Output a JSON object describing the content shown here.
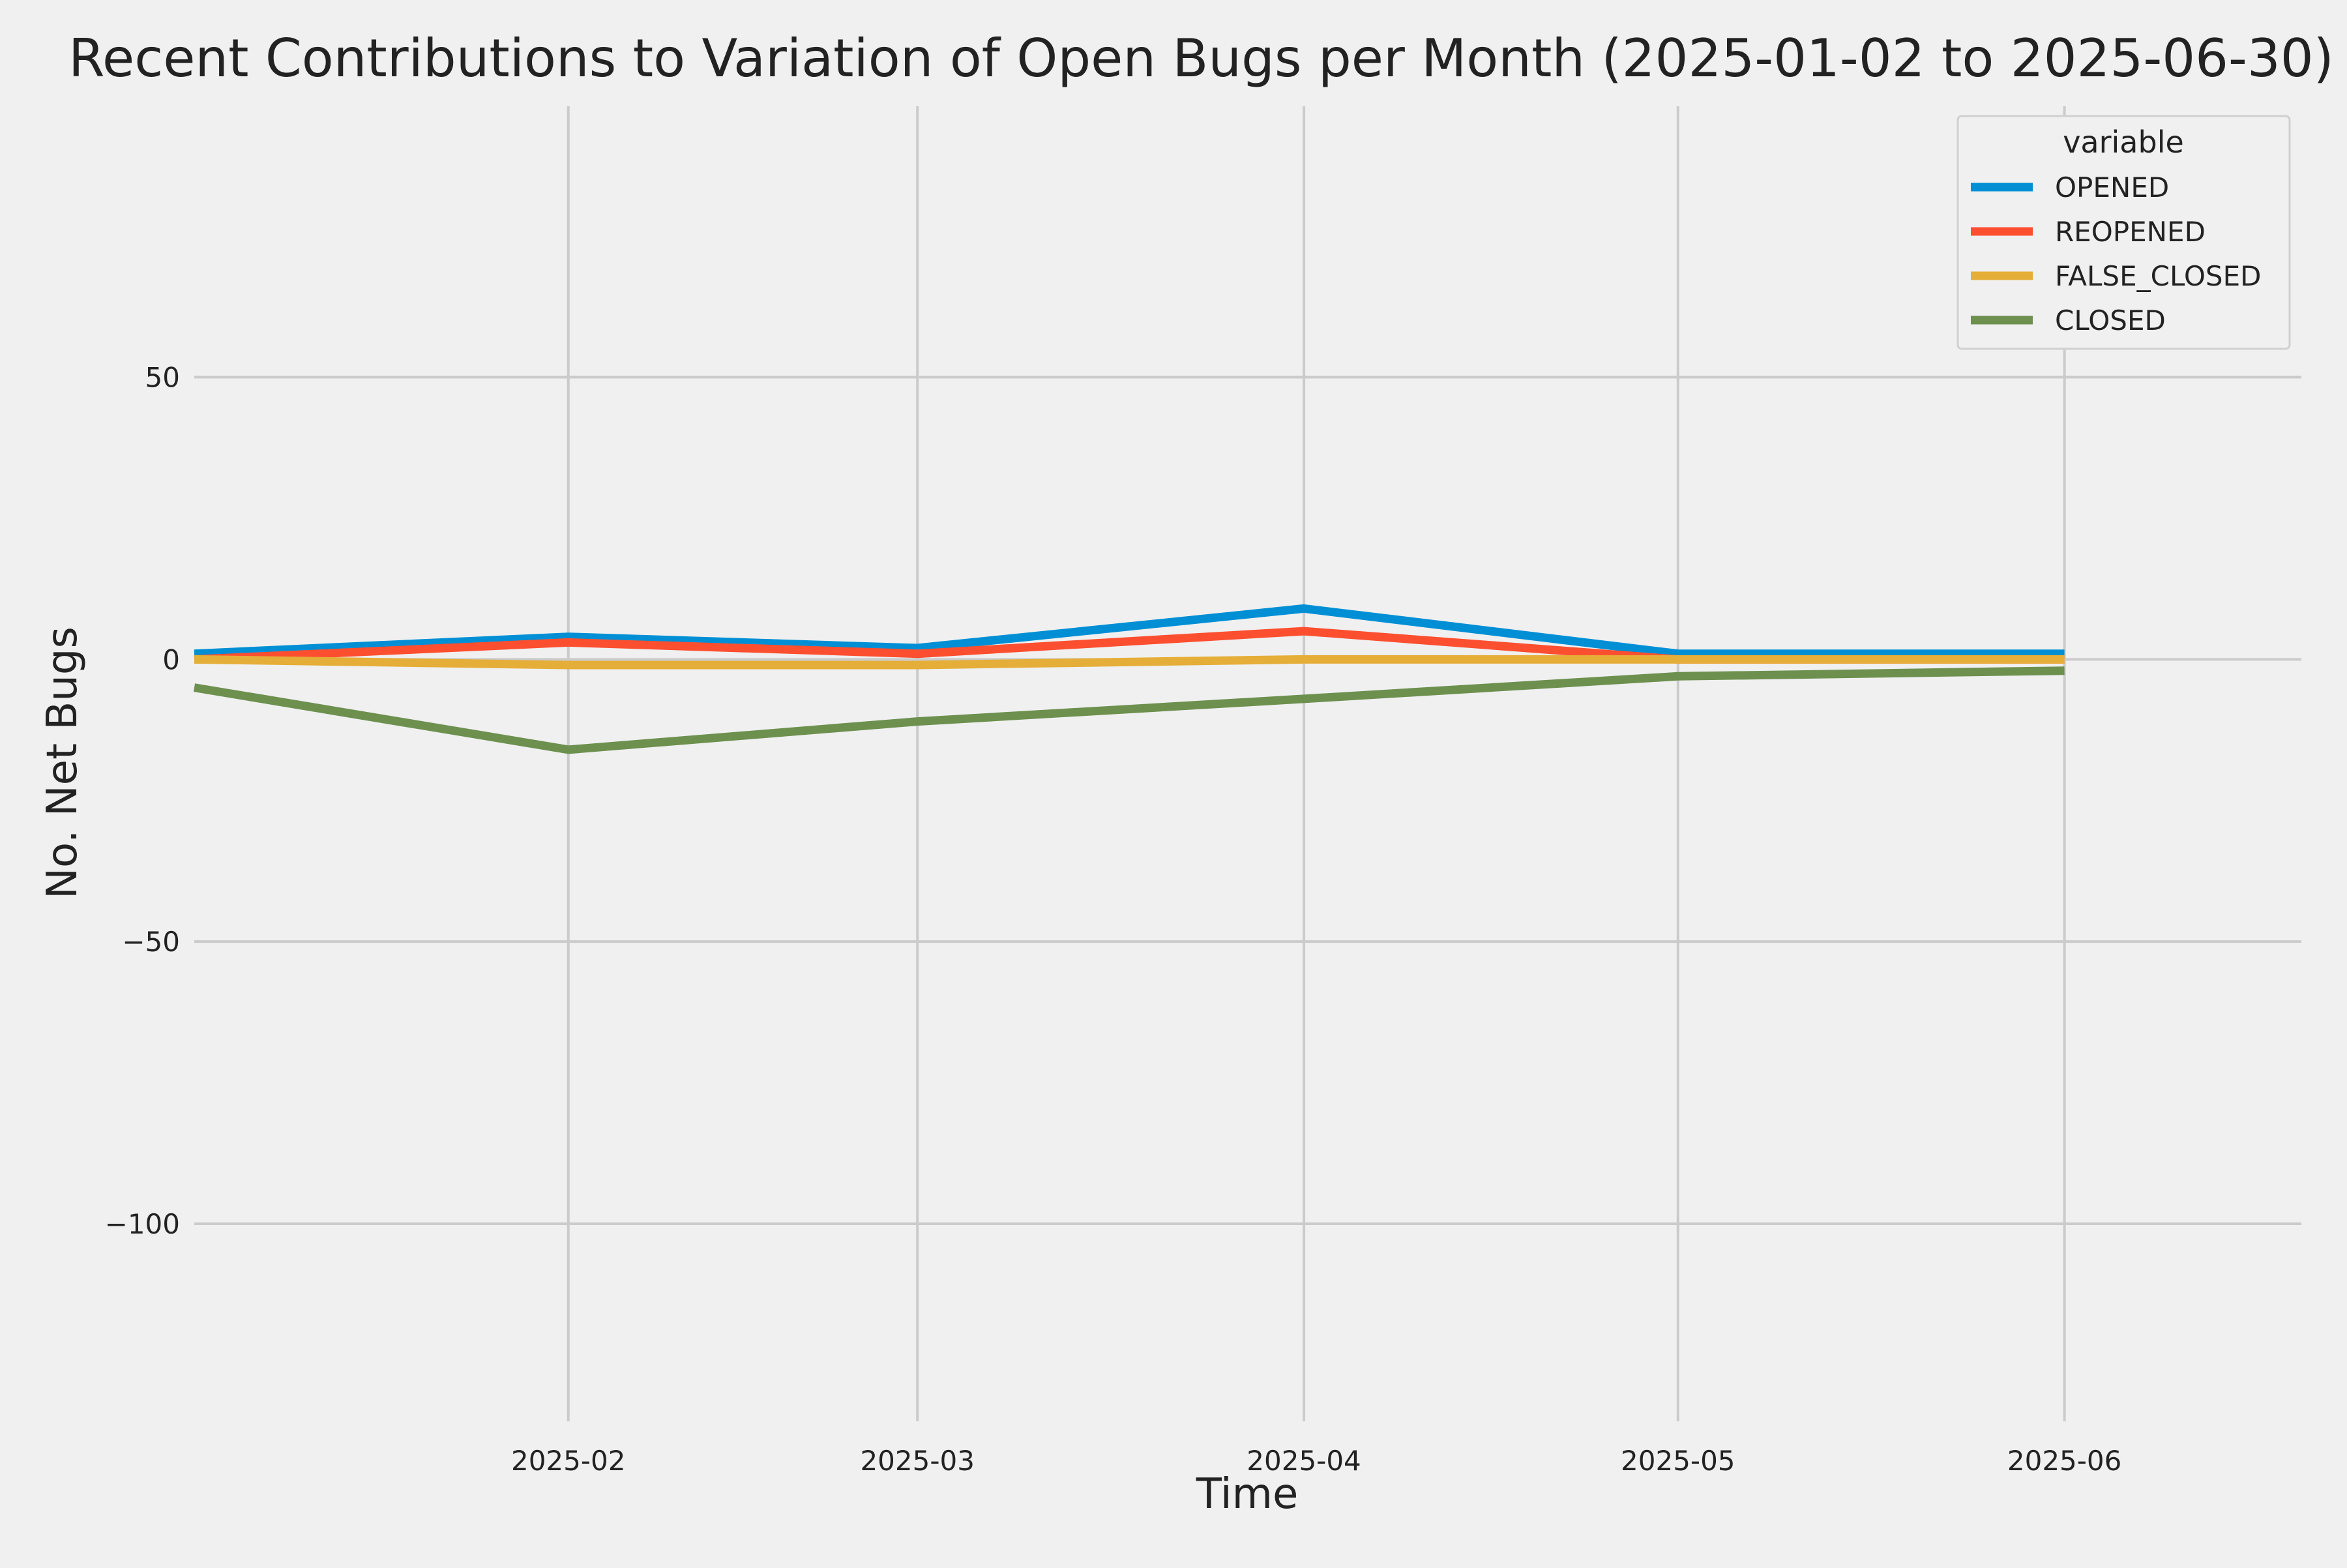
{
  "chart_data": {
    "type": "line",
    "title": "Recent Contributions to Variation of Open Bugs per Month (2025-01-02 to 2025-06-30)",
    "xlabel": "Time",
    "ylabel": "No. Net Bugs",
    "x": [
      "2025-01-02",
      "2025-02-01",
      "2025-03-01",
      "2025-04-01",
      "2025-05-01",
      "2025-06-01"
    ],
    "xlim": [
      "2025-01-02",
      "2025-06-20"
    ],
    "xticks": [
      "2025-02-01",
      "2025-03-01",
      "2025-04-01",
      "2025-05-01",
      "2025-06-01"
    ],
    "xtick_labels": [
      "2025-02",
      "2025-03",
      "2025-04",
      "2025-05",
      "2025-06"
    ],
    "ylim": [
      -135,
      98
    ],
    "yticks": [
      50,
      0,
      -50,
      -100
    ],
    "ytick_labels": [
      "50",
      "0",
      "−50",
      "−100"
    ],
    "grid": true,
    "legend": {
      "title": "variable",
      "placement": "top-right"
    },
    "series": [
      {
        "name": "OPENED",
        "color": "#008fd5",
        "values": [
          1,
          4,
          2,
          9,
          1,
          1
        ]
      },
      {
        "name": "REOPENED",
        "color": "#fc4f30",
        "values": [
          0,
          3,
          1,
          5,
          0,
          0
        ]
      },
      {
        "name": "FALSE_CLOSED",
        "color": "#e5ae38",
        "values": [
          0,
          -1,
          -1,
          0,
          0,
          0
        ]
      },
      {
        "name": "CLOSED",
        "color": "#6d904f",
        "values": [
          -5,
          -16,
          -11,
          -7,
          -3,
          -2
        ]
      }
    ]
  }
}
